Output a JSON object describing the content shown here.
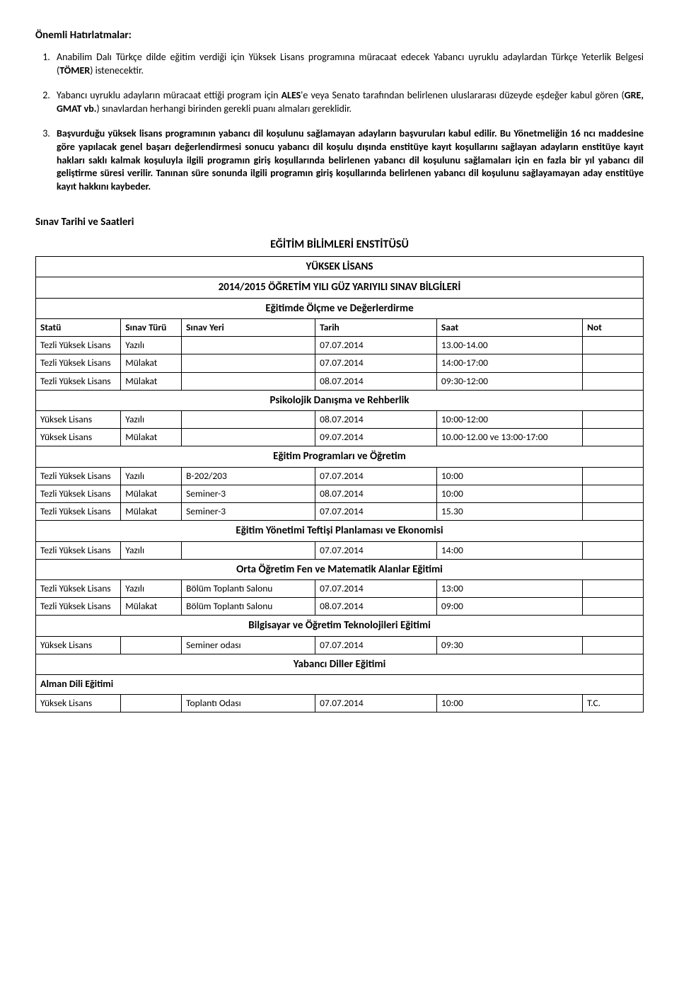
{
  "reminders_title": "Önemli Hatırlatmalar:",
  "reminders": [
    "Anabilim Dalı Türkçe dilde eğitim verdiği için Yüksek Lisans programına müracaat edecek Yabancı uyruklu adaylardan Türkçe Yeterlik Belgesi (TÖMER) istenecektir.",
    "Yabancı uyruklu adayların müracaat ettiği program için ALES'e veya Senato tarafından belirlenen uluslararası düzeyde eşdeğer kabul gören (GRE, GMAT vb.) sınavlardan herhangi birinden gerekli puanı almaları gereklidir.",
    "Başvurduğu yüksek lisans programının yabancı dil koşulunu sağlamayan adayların başvuruları kabul edilir. Bu Yönetmeliğin 16 ncı maddesine göre yapılacak genel başarı değerlendirmesi sonucu yabancı dil koşulu dışında enstitüye kayıt koşullarını sağlayan adayların enstitüye kayıt hakları saklı kalmak koşuluyla ilgili programın giriş koşullarında belirlenen yabancı dil koşulunu sağlamaları için en fazla bir yıl yabancı dil geliştirme süresi verilir. Tanınan süre sonunda ilgili programın giriş koşullarında belirlenen yabancı dil koşulunu sağlayamayan aday enstitüye kayıt hakkını kaybeder."
  ],
  "bold_map": {
    "0": [
      "TÖMER"
    ],
    "1": [
      "ALES",
      "GRE, GMAT vb."
    ],
    "2": [
      "Başvurduğu yüksek lisans programının yabancı dil koşulunu sağlamayan adayların başvuruları kabul edilir. Bu Yönetmeliğin 16 ncı maddesine göre yapılacak genel başarı değerlendirmesi sonucu yabancı dil koşulu dışında enstitüye kayıt koşullarını sağlayan adayların enstitüye kayıt hakları saklı kalmak koşuluyla ilgili programın giriş koşullarında belirlenen yabancı dil koşulunu sağlamaları için en fazla bir yıl yabancı dil geliştirme süresi verilir. Tanınan süre sonunda ilgili programın giriş koşullarında belirlenen yabancı dil koşulunu sağlayamayan aday enstitüye kayıt hakkını kaybeder."
    ]
  },
  "exam_heading": "Sınav Tarihi ve Saatleri",
  "institute_name": "EĞİTİM BİLİMLERİ ENSTİTÜSÜ",
  "program_level": "YÜKSEK LİSANS",
  "year_info": "2014/2015 ÖĞRETİM YILI GÜZ YARIYILI SINAV BİLGİLERİ",
  "columns": {
    "statu": "Statü",
    "turu": "Sınav Türü",
    "yeri": "Sınav Yeri",
    "tarih": "Tarih",
    "saat": "Saat",
    "not": "Not"
  },
  "sections": [
    {
      "title": "Eğitimde Ölçme ve  Değerlerdirme",
      "show_header": true,
      "rows": [
        {
          "statu": "Tezli Yüksek Lisans",
          "turu": "Yazılı",
          "yeri": "",
          "tarih": "07.07.2014",
          "saat": "13.00-14.00",
          "not": ""
        },
        {
          "statu": "Tezli Yüksek Lisans",
          "turu": "Mülakat",
          "yeri": "",
          "tarih": "07.07.2014",
          "saat": "14:00-17:00",
          "not": ""
        },
        {
          "statu": "Tezli Yüksek Lisans",
          "turu": "Mülakat",
          "yeri": "",
          "tarih": "08.07.2014",
          "saat": "09:30-12:00",
          "not": ""
        }
      ]
    },
    {
      "title": "Psikolojik  Danışma ve Rehberlik",
      "rows": [
        {
          "statu": "Yüksek Lisans",
          "turu": "Yazılı",
          "yeri": "",
          "tarih": "08.07.2014",
          "saat": "10:00-12:00",
          "not": ""
        },
        {
          "statu": "Yüksek Lisans",
          "turu": "Mülakat",
          "yeri": "",
          "tarih": "09.07.2014",
          "saat": "10.00-12.00  ve 13:00-17:00",
          "not": ""
        }
      ]
    },
    {
      "title": "Eğitim Programları ve Öğretim",
      "rows": [
        {
          "statu": "Tezli Yüksek Lisans",
          "turu": "Yazılı",
          "yeri": "B-202/203",
          "tarih": "07.07.2014",
          "saat": "10:00",
          "not": ""
        },
        {
          "statu": "Tezli Yüksek Lisans",
          "turu": "Mülakat",
          "yeri": "Seminer-3",
          "tarih": "08.07.2014",
          "saat": "10:00",
          "not": ""
        },
        {
          "statu": "Tezli Yüksek Lisans",
          "turu": "Mülakat",
          "yeri": "Seminer-3",
          "tarih": "07.07.2014",
          "saat": "15.30",
          "not": ""
        }
      ]
    },
    {
      "title": "Eğitim Yönetimi Teftişi Planlaması ve Ekonomisi",
      "rows": [
        {
          "statu": "Tezli Yüksek Lisans",
          "turu": "Yazılı",
          "yeri": "",
          "tarih": "07.07.2014",
          "saat": "14:00",
          "not": ""
        }
      ]
    },
    {
      "title": "Orta Öğretim Fen ve Matematik Alanlar Eğitimi",
      "rows": [
        {
          "statu": "Tezli Yüksek Lisans",
          "turu": "Yazılı",
          "yeri": "Bölüm Toplantı Salonu",
          "tarih": "07.07.2014",
          "saat": "13:00",
          "not": ""
        },
        {
          "statu": "Tezli Yüksek Lisans",
          "turu": "Mülakat",
          "yeri": "Bölüm Toplantı Salonu",
          "tarih": "08.07.2014",
          "saat": "09:00",
          "not": ""
        }
      ]
    },
    {
      "title": "Bilgisayar ve Öğretim Teknolojileri Eğitimi",
      "rows": [
        {
          "statu": "Yüksek Lisans",
          "turu": "",
          "yeri": "Seminer odası",
          "tarih": "07.07.2014",
          "saat": "09:30",
          "not": ""
        }
      ]
    },
    {
      "title": "Yabancı  Diller Eğitimi",
      "subprogram": "Alman Dili Eğitimi",
      "rows": [
        {
          "statu": "Yüksek Lisans",
          "turu": "",
          "yeri": "Toplantı Odası",
          "tarih": "07.07.2014",
          "saat": "10:00",
          "not": "T.C."
        }
      ]
    }
  ]
}
